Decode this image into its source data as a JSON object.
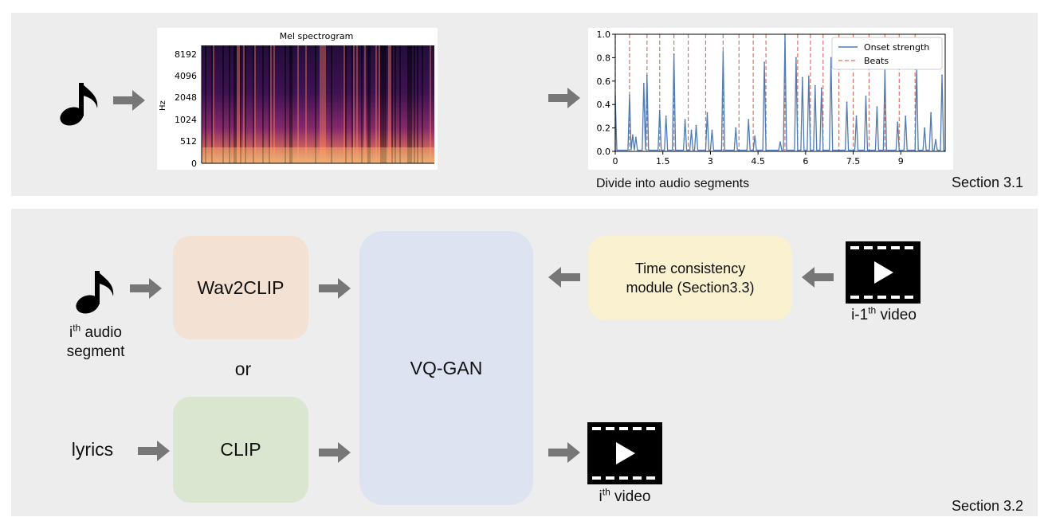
{
  "top": {
    "spectrogram": {
      "title": "Mel spectrogram",
      "ylabel": "Hz",
      "yticks": [
        "8192",
        "4096",
        "2048",
        "1024",
        "512",
        "0"
      ]
    },
    "divide_label": "Divide into audio segments",
    "section_label": "Section 3.1"
  },
  "bottom": {
    "audio_caption_sup": "th",
    "audio_caption_rest": " audio",
    "audio_caption_line2": "segment",
    "audio_caption_i": "i",
    "wav2clip_label": "Wav2CLIP",
    "or_label": "or",
    "lyrics_label": "lyrics",
    "clip_label": "CLIP",
    "vqgan_label": "VQ-GAN",
    "time_module_line1": "Time consistency",
    "time_module_line2": "module (Section3.3)",
    "prev_video_prefix": "i-1",
    "prev_video_sup": "th",
    "prev_video_rest": " video",
    "out_video_prefix": "i",
    "out_video_sup": "th",
    "out_video_rest": " video",
    "section_label": "Section 3.2"
  },
  "colors": {
    "panel": "#ededed",
    "wav2clip": "#f3e1d3",
    "clip": "#dae6cf",
    "vqgan": "#dde3f1",
    "time_module": "#f9f1d0",
    "arrow": "#777777",
    "beat_line": "#e07060",
    "onset_line": "#4f7ab3"
  },
  "chart_data": {
    "type": "line",
    "title": "",
    "xlabel": "",
    "ylabel": "",
    "xlim": [
      0,
      10.4
    ],
    "ylim": [
      0,
      1.0
    ],
    "xticks": [
      0,
      1.5,
      3,
      4.5,
      6,
      7.5,
      9
    ],
    "xtick_labels": [
      "0",
      "1.5",
      "3",
      "4.5",
      "6",
      "7.5",
      "9"
    ],
    "yticks": [
      0.0,
      0.2,
      0.4,
      0.6,
      0.8,
      1.0
    ],
    "ytick_labels": [
      "0.0",
      "0.2",
      "0.4",
      "0.6",
      "0.8",
      "1.0"
    ],
    "legend": {
      "position": "top-right",
      "entries": [
        "Onset strength",
        "Beats"
      ]
    },
    "series": [
      {
        "name": "Onset strength",
        "peaks": [
          {
            "x": 0.0,
            "y": 0.47
          },
          {
            "x": 0.45,
            "y": 0.48
          },
          {
            "x": 0.55,
            "y": 0.14
          },
          {
            "x": 0.65,
            "y": 0.12
          },
          {
            "x": 0.9,
            "y": 0.58
          },
          {
            "x": 1.0,
            "y": 0.65
          },
          {
            "x": 1.4,
            "y": 0.35
          },
          {
            "x": 1.6,
            "y": 0.3
          },
          {
            "x": 1.85,
            "y": 0.83
          },
          {
            "x": 2.2,
            "y": 0.27
          },
          {
            "x": 2.4,
            "y": 0.18
          },
          {
            "x": 2.55,
            "y": 0.22
          },
          {
            "x": 2.9,
            "y": 0.33
          },
          {
            "x": 3.05,
            "y": 0.18
          },
          {
            "x": 3.4,
            "y": 0.85
          },
          {
            "x": 3.8,
            "y": 0.2
          },
          {
            "x": 4.2,
            "y": 0.27
          },
          {
            "x": 4.4,
            "y": 0.13
          },
          {
            "x": 4.7,
            "y": 0.76
          },
          {
            "x": 5.2,
            "y": 0.08
          },
          {
            "x": 5.35,
            "y": 1.0
          },
          {
            "x": 5.7,
            "y": 0.8
          },
          {
            "x": 5.9,
            "y": 0.63
          },
          {
            "x": 6.1,
            "y": 0.64
          },
          {
            "x": 6.3,
            "y": 0.56
          },
          {
            "x": 6.5,
            "y": 0.54
          },
          {
            "x": 6.8,
            "y": 0.8
          },
          {
            "x": 7.3,
            "y": 0.42
          },
          {
            "x": 7.6,
            "y": 0.3
          },
          {
            "x": 7.9,
            "y": 0.47
          },
          {
            "x": 8.25,
            "y": 0.38
          },
          {
            "x": 8.5,
            "y": 0.7
          },
          {
            "x": 8.9,
            "y": 0.25
          },
          {
            "x": 9.15,
            "y": 0.3
          },
          {
            "x": 9.5,
            "y": 0.7
          },
          {
            "x": 9.75,
            "y": 0.2
          },
          {
            "x": 9.95,
            "y": 0.33
          },
          {
            "x": 10.1,
            "y": 0.1
          },
          {
            "x": 10.3,
            "y": 0.65
          }
        ]
      },
      {
        "name": "Beats",
        "x": [
          0.0,
          0.45,
          1.0,
          1.4,
          1.85,
          2.3,
          2.85,
          3.4,
          3.9,
          4.35,
          4.75,
          5.35,
          5.75,
          6.15,
          6.55,
          7.05,
          7.5,
          8.0,
          8.5,
          8.95,
          9.45
        ]
      }
    ]
  }
}
